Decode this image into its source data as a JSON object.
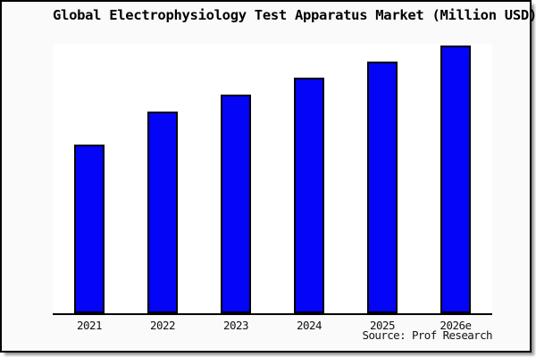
{
  "window": {
    "bg_color": "#FAFAFA",
    "plot_bg_color": "#FFFFFF",
    "border_color": "#000000"
  },
  "header": {
    "title": "Global Electrophysiology Test Apparatus Market (Million USD)"
  },
  "chart_data": {
    "type": "bar",
    "title": "Global Electrophysiology Test Apparatus Market (Million USD)",
    "categories": [
      "2021",
      "2022",
      "2023",
      "2024",
      "2025",
      "2026e"
    ],
    "values": [
      63,
      75.3,
      81.7,
      88,
      94,
      100
    ],
    "values_note": "relative heights (no y-axis scale shown in image); 2026e = 100",
    "xlabel": "",
    "ylabel": "",
    "ylim": [
      0,
      100
    ],
    "grid": false,
    "legend": null,
    "bar_fill": "#0404F6",
    "bar_border": "#000000",
    "axis_color": "#000000"
  },
  "footer": {
    "source_label": "Source: Prof Research"
  }
}
